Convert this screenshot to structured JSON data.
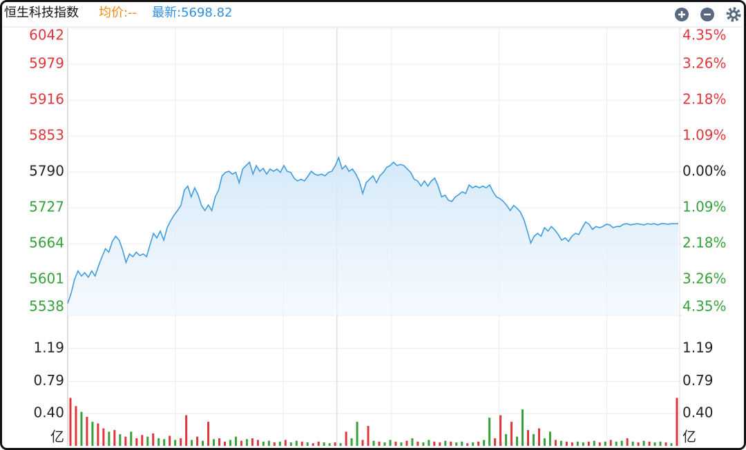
{
  "header": {
    "title": "恒生科技指数",
    "avg": "均价:--",
    "latest": "最新:5698.82"
  },
  "chart_data": [
    {
      "type": "line",
      "color": "#3d9be0",
      "tick_colors": {
        "up": "#e0353b",
        "flat": "#222222",
        "down": "#35a13a"
      },
      "values": [
        5559,
        5577,
        5601,
        5616,
        5607,
        5613,
        5605,
        5616,
        5607,
        5625,
        5641,
        5655,
        5649,
        5668,
        5677,
        5670,
        5653,
        5631,
        5646,
        5641,
        5649,
        5643,
        5646,
        5641,
        5662,
        5682,
        5674,
        5686,
        5670,
        5692,
        5704,
        5714,
        5722,
        5731,
        5758,
        5765,
        5746,
        5762,
        5750,
        5731,
        5722,
        5732,
        5722,
        5746,
        5758,
        5783,
        5789,
        5791,
        5786,
        5789,
        5771,
        5795,
        5801,
        5807,
        5786,
        5801,
        5791,
        5796,
        5786,
        5795,
        5791,
        5795,
        5789,
        5801,
        5791,
        5789,
        5779,
        5774,
        5777,
        5774,
        5782,
        5791,
        5786,
        5784,
        5786,
        5783,
        5789,
        5791,
        5801,
        5815,
        5795,
        5801,
        5791,
        5795,
        5786,
        5774,
        5752,
        5771,
        5777,
        5783,
        5771,
        5783,
        5789,
        5798,
        5801,
        5807,
        5801,
        5803,
        5801,
        5795,
        5789,
        5777,
        5774,
        5765,
        5774,
        5765,
        5774,
        5779,
        5765,
        5746,
        5749,
        5740,
        5738,
        5746,
        5750,
        5755,
        5752,
        5767,
        5762,
        5765,
        5762,
        5765,
        5762,
        5767,
        5755,
        5746,
        5743,
        5738,
        5731,
        5722,
        5731,
        5726,
        5719,
        5706,
        5686,
        5665,
        5677,
        5682,
        5677,
        5692,
        5686,
        5694,
        5688,
        5680,
        5670,
        5674,
        5668,
        5677,
        5682,
        5680,
        5692,
        5702,
        5698,
        5689,
        5694,
        5692,
        5694,
        5698,
        5697,
        5692,
        5694,
        5694,
        5698,
        5699,
        5697,
        5698,
        5699,
        5698,
        5697,
        5699,
        5698,
        5699,
        5697,
        5699,
        5699,
        5698,
        5699,
        5699,
        5699
      ],
      "ylim": [
        5538,
        6042
      ],
      "yticks": [
        6042,
        5979,
        5916,
        5853,
        5790,
        5727,
        5664,
        5601,
        5538
      ],
      "y2lim": [
        -4.35,
        4.35
      ],
      "y2ticks": [
        {
          "value": 4.35,
          "label": "4.35%"
        },
        {
          "value": 3.26,
          "label": "3.26%"
        },
        {
          "value": 2.18,
          "label": "2.18%"
        },
        {
          "value": 1.09,
          "label": "1.09%"
        },
        {
          "value": 0,
          "label": "0.00%"
        },
        {
          "value": -1.09,
          "label": "1.09%"
        },
        {
          "value": -2.18,
          "label": "2.18%"
        },
        {
          "value": -3.26,
          "label": "3.26%"
        },
        {
          "value": -4.35,
          "label": "4.35%"
        }
      ]
    },
    {
      "type": "bar",
      "up_color": "#e0353b",
      "down_color": "#35a13a",
      "unit": "亿",
      "values": [
        0.59,
        0.49,
        0.42,
        0.36,
        0.3,
        0.28,
        0.22,
        0.18,
        0.2,
        0.15,
        0.12,
        0.18,
        0.1,
        0.14,
        0.12,
        0.16,
        0.1,
        0.09,
        0.13,
        0.08,
        0.1,
        0.38,
        0.08,
        0.12,
        0.07,
        0.3,
        0.09,
        0.1,
        0.06,
        0.08,
        0.12,
        0.07,
        0.09,
        0.1,
        0.08,
        0.06,
        0.07,
        0.05,
        0.06,
        0.08,
        0.05,
        0.07,
        0.06,
        0.05,
        0.04,
        0.06,
        0.05,
        0.04,
        0.05,
        0.04,
        0.18,
        0.1,
        0.3,
        0.08,
        0.25,
        0.07,
        0.06,
        0.05,
        0.08,
        0.06,
        0.05,
        0.07,
        0.1,
        0.06,
        0.05,
        0.08,
        0.06,
        0.05,
        0.07,
        0.06,
        0.05,
        0.06,
        0.04,
        0.05,
        0.06,
        0.08,
        0.35,
        0.1,
        0.38,
        0.15,
        0.3,
        0.12,
        0.45,
        0.2,
        0.15,
        0.22,
        0.1,
        0.18,
        0.08,
        0.07,
        0.06,
        0.05,
        0.06,
        0.05,
        0.06,
        0.07,
        0.05,
        0.06,
        0.08,
        0.06,
        0.07,
        0.1,
        0.06,
        0.05,
        0.07,
        0.06,
        0.05,
        0.06,
        0.05,
        0.04,
        0.59
      ],
      "up": [
        true,
        true,
        false,
        true,
        false,
        true,
        true,
        false,
        true,
        false,
        true,
        false,
        true,
        true,
        false,
        true,
        false,
        false,
        true,
        false,
        true,
        true,
        false,
        true,
        false,
        true,
        false,
        true,
        true,
        false,
        false,
        true,
        false,
        true,
        true,
        false,
        false,
        true,
        false,
        true,
        false,
        false,
        true,
        false,
        true,
        true,
        false,
        false,
        true,
        false,
        true,
        false,
        false,
        true,
        true,
        false,
        true,
        false,
        false,
        true,
        false,
        true,
        false,
        true,
        false,
        false,
        true,
        true,
        false,
        true,
        false,
        false,
        true,
        false,
        true,
        false,
        false,
        true,
        true,
        false,
        true,
        false,
        false,
        true,
        false,
        true,
        false,
        false,
        true,
        false,
        true,
        true,
        false,
        false,
        true,
        false,
        true,
        false,
        true,
        false,
        false,
        true,
        false,
        true,
        false,
        true,
        false,
        false,
        true,
        false,
        true
      ],
      "ylim": [
        0,
        1.59
      ],
      "yticks": [
        {
          "value": 1.19,
          "label": "1.19"
        },
        {
          "value": 0.79,
          "label": "0.79"
        },
        {
          "value": 0.4,
          "label": "0.40"
        }
      ]
    }
  ]
}
